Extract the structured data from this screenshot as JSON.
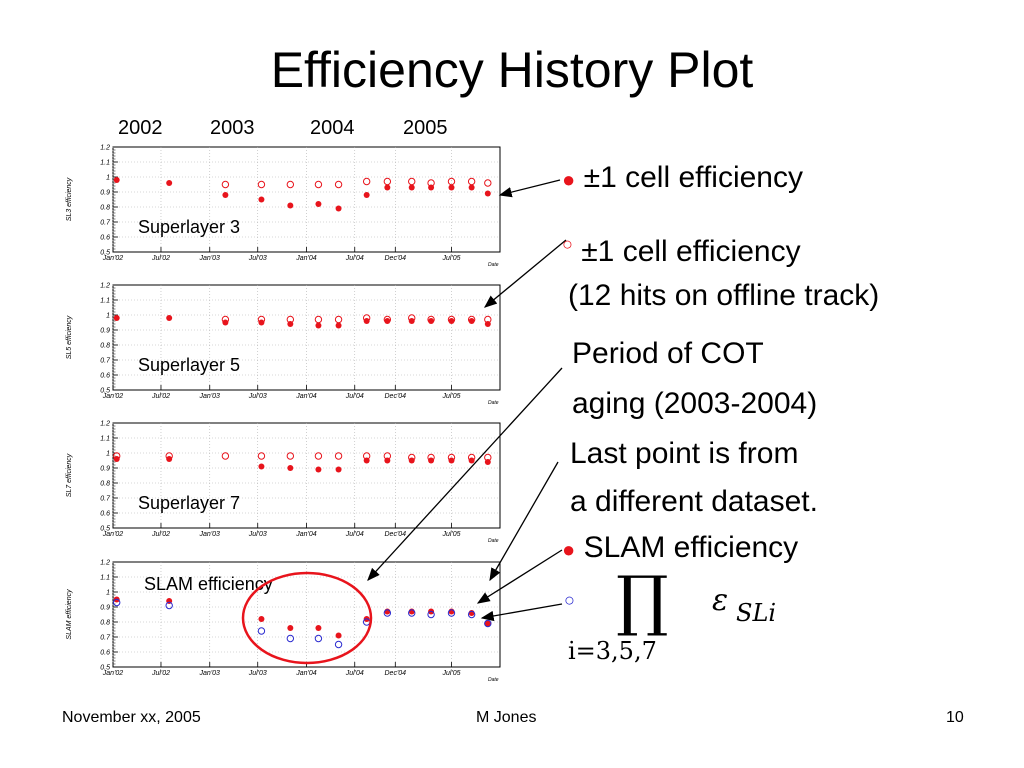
{
  "slide": {
    "title": "Efficiency History Plot",
    "years": [
      "2002",
      "2003",
      "2004",
      "2005"
    ],
    "footer_left": "November xx, 2005",
    "footer_center": "M Jones",
    "footer_right": "10"
  },
  "annotations": {
    "filled_bullet": "●",
    "open_bullet": "○",
    "line1": "±1 cell efficiency",
    "line2": "±1 cell efficiency",
    "line3": "(12 hits on offline track)",
    "line4": "Period of COT",
    "line5": "aging (2003-2004)",
    "line6": "Last point is from",
    "line7": "a different dataset.",
    "line8": "SLAM efficiency",
    "formula_prod": "∏",
    "formula_eps": "ε",
    "formula_sub": "SLi",
    "formula_under": "i=3,5,7"
  },
  "colors": {
    "filled": "#e8141c",
    "open_red": "#e8141c",
    "open_blue": "#2b2bd0",
    "arrow": "#000000",
    "ellipse": "#e8141c",
    "grid": "#b0b0b0"
  },
  "chart_data": [
    {
      "type": "scatter",
      "panel_label": "Superlayer 3",
      "ylabel": "SL3 efficiency",
      "xlabel": "Date",
      "ylim": [
        0.5,
        1.2
      ],
      "y_ticks": [
        "0.5",
        "0.6",
        "0.7",
        "0.8",
        "0.9",
        "1",
        "1.1",
        "1.2"
      ],
      "x_ticks": [
        "Jan'02",
        "Jul'02",
        "Jan'03",
        "Jul'03",
        "Jan'04",
        "Jul'04",
        "Dec'04",
        "Jul'05"
      ],
      "grid": true,
      "series": [
        {
          "marker": "filled",
          "x": [
            "2002-01-15",
            "2002-08-01",
            "2003-03-01",
            "2003-07-15",
            "2003-11-01",
            "2004-02-15",
            "2004-05-01",
            "2004-08-15",
            "2004-11-01",
            "2005-02-01",
            "2005-04-15",
            "2005-07-01",
            "2005-09-15",
            "2005-11-15"
          ],
          "y": [
            0.98,
            0.96,
            0.88,
            0.85,
            0.81,
            0.82,
            0.79,
            0.88,
            0.93,
            0.93,
            0.93,
            0.93,
            0.93,
            0.89
          ]
        },
        {
          "marker": "open",
          "x": [
            "2003-03-01",
            "2003-07-15",
            "2003-11-01",
            "2004-02-15",
            "2004-05-01",
            "2004-08-15",
            "2004-11-01",
            "2005-02-01",
            "2005-04-15",
            "2005-07-01",
            "2005-09-15",
            "2005-11-15"
          ],
          "y": [
            0.95,
            0.95,
            0.95,
            0.95,
            0.95,
            0.97,
            0.97,
            0.97,
            0.96,
            0.97,
            0.97,
            0.96
          ]
        }
      ]
    },
    {
      "type": "scatter",
      "panel_label": "Superlayer 5",
      "ylabel": "SL5 efficiency",
      "xlabel": "Date",
      "ylim": [
        0.5,
        1.2
      ],
      "y_ticks": [
        "0.5",
        "0.6",
        "0.7",
        "0.8",
        "0.9",
        "1",
        "1.1",
        "1.2"
      ],
      "x_ticks": [
        "Jan'02",
        "Jul'02",
        "Jan'03",
        "Jul'03",
        "Jan'04",
        "Jul'04",
        "Dec'04",
        "Jul'05"
      ],
      "grid": true,
      "series": [
        {
          "marker": "filled",
          "x": [
            "2002-01-15",
            "2002-08-01",
            "2003-03-01",
            "2003-07-15",
            "2003-11-01",
            "2004-02-15",
            "2004-05-01",
            "2004-08-15",
            "2004-11-01",
            "2005-02-01",
            "2005-04-15",
            "2005-07-01",
            "2005-09-15",
            "2005-11-15"
          ],
          "y": [
            0.98,
            0.98,
            0.95,
            0.95,
            0.94,
            0.93,
            0.93,
            0.96,
            0.96,
            0.96,
            0.96,
            0.96,
            0.96,
            0.94
          ]
        },
        {
          "marker": "open",
          "x": [
            "2003-03-01",
            "2003-07-15",
            "2003-11-01",
            "2004-02-15",
            "2004-05-01",
            "2004-08-15",
            "2004-11-01",
            "2005-02-01",
            "2005-04-15",
            "2005-07-01",
            "2005-09-15",
            "2005-11-15"
          ],
          "y": [
            0.97,
            0.97,
            0.97,
            0.97,
            0.97,
            0.98,
            0.97,
            0.98,
            0.97,
            0.97,
            0.97,
            0.97
          ]
        }
      ]
    },
    {
      "type": "scatter",
      "panel_label": "Superlayer 7",
      "ylabel": "SL7 efficiency",
      "xlabel": "Date",
      "ylim": [
        0.5,
        1.2
      ],
      "y_ticks": [
        "0.5",
        "0.6",
        "0.7",
        "0.8",
        "0.9",
        "1",
        "1.1",
        "1.2"
      ],
      "x_ticks": [
        "Jan'02",
        "Jul'02",
        "Jan'03",
        "Jul'03",
        "Jan'04",
        "Jul'04",
        "Dec'04",
        "Jul'05"
      ],
      "grid": true,
      "series": [
        {
          "marker": "filled",
          "x": [
            "2002-01-15",
            "2002-08-01",
            "2003-07-15",
            "2003-11-01",
            "2004-02-15",
            "2004-05-01",
            "2004-08-15",
            "2004-11-01",
            "2005-02-01",
            "2005-04-15",
            "2005-07-01",
            "2005-09-15",
            "2005-11-15"
          ],
          "y": [
            0.96,
            0.96,
            0.91,
            0.9,
            0.89,
            0.89,
            0.95,
            0.95,
            0.95,
            0.95,
            0.95,
            0.95,
            0.94
          ]
        },
        {
          "marker": "open",
          "x": [
            "2002-01-15",
            "2002-08-01",
            "2003-03-01",
            "2003-07-15",
            "2003-11-01",
            "2004-02-15",
            "2004-05-01",
            "2004-08-15",
            "2004-11-01",
            "2005-02-01",
            "2005-04-15",
            "2005-07-01",
            "2005-09-15",
            "2005-11-15"
          ],
          "y": [
            0.98,
            0.98,
            0.98,
            0.98,
            0.98,
            0.98,
            0.98,
            0.98,
            0.98,
            0.97,
            0.97,
            0.97,
            0.97,
            0.97
          ]
        }
      ]
    },
    {
      "type": "scatter",
      "panel_label": "SLAM efficiency",
      "ylabel": "SLAM efficiency",
      "xlabel": "Date",
      "ylim": [
        0.5,
        1.2
      ],
      "y_ticks": [
        "0.5",
        "0.6",
        "0.7",
        "0.8",
        "0.9",
        "1",
        "1.1",
        "1.2"
      ],
      "x_ticks": [
        "Jan'02",
        "Jul'02",
        "Jan'03",
        "Jul'03",
        "Jan'04",
        "Jul'04",
        "Dec'04",
        "Jul'05"
      ],
      "grid": true,
      "series": [
        {
          "marker": "filled",
          "x": [
            "2002-01-15",
            "2002-08-01",
            "2003-07-15",
            "2003-11-01",
            "2004-02-15",
            "2004-05-01",
            "2004-08-15",
            "2004-11-01",
            "2005-02-01",
            "2005-04-15",
            "2005-07-01",
            "2005-09-15",
            "2005-11-15"
          ],
          "y": [
            0.95,
            0.94,
            0.82,
            0.76,
            0.76,
            0.71,
            0.82,
            0.87,
            0.87,
            0.87,
            0.87,
            0.86,
            0.79
          ]
        },
        {
          "marker": "open-blue",
          "x": [
            "2002-01-15",
            "2002-08-01",
            "2003-07-15",
            "2003-11-01",
            "2004-02-15",
            "2004-05-01",
            "2004-08-15",
            "2004-11-01",
            "2005-02-01",
            "2005-04-15",
            "2005-07-01",
            "2005-09-15",
            "2005-11-15"
          ],
          "y": [
            0.93,
            0.91,
            0.74,
            0.69,
            0.69,
            0.65,
            0.8,
            0.86,
            0.86,
            0.85,
            0.86,
            0.85,
            0.79
          ]
        }
      ]
    }
  ]
}
